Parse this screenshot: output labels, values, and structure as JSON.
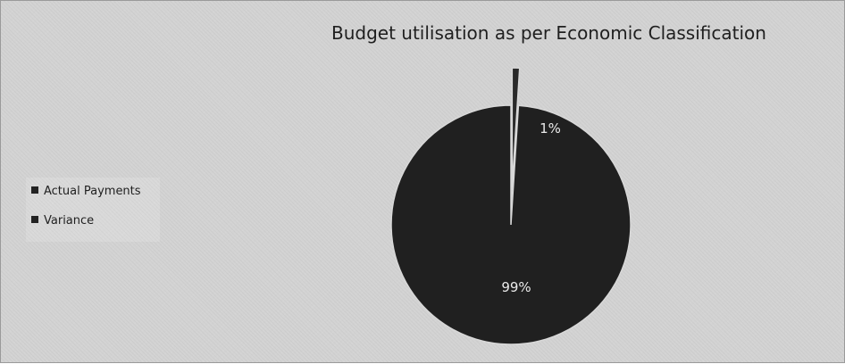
{
  "chart_data": {
    "type": "pie",
    "title": "Budget utilisation as per Economic Classification",
    "categories": [
      "Actual Payments",
      "Variance"
    ],
    "values": [
      99,
      1
    ],
    "data_labels": [
      "99%",
      "1%"
    ],
    "legend_position": "left",
    "colors": [
      "#202020",
      "#2a2a2a"
    ],
    "exploded_slice": "Variance"
  }
}
